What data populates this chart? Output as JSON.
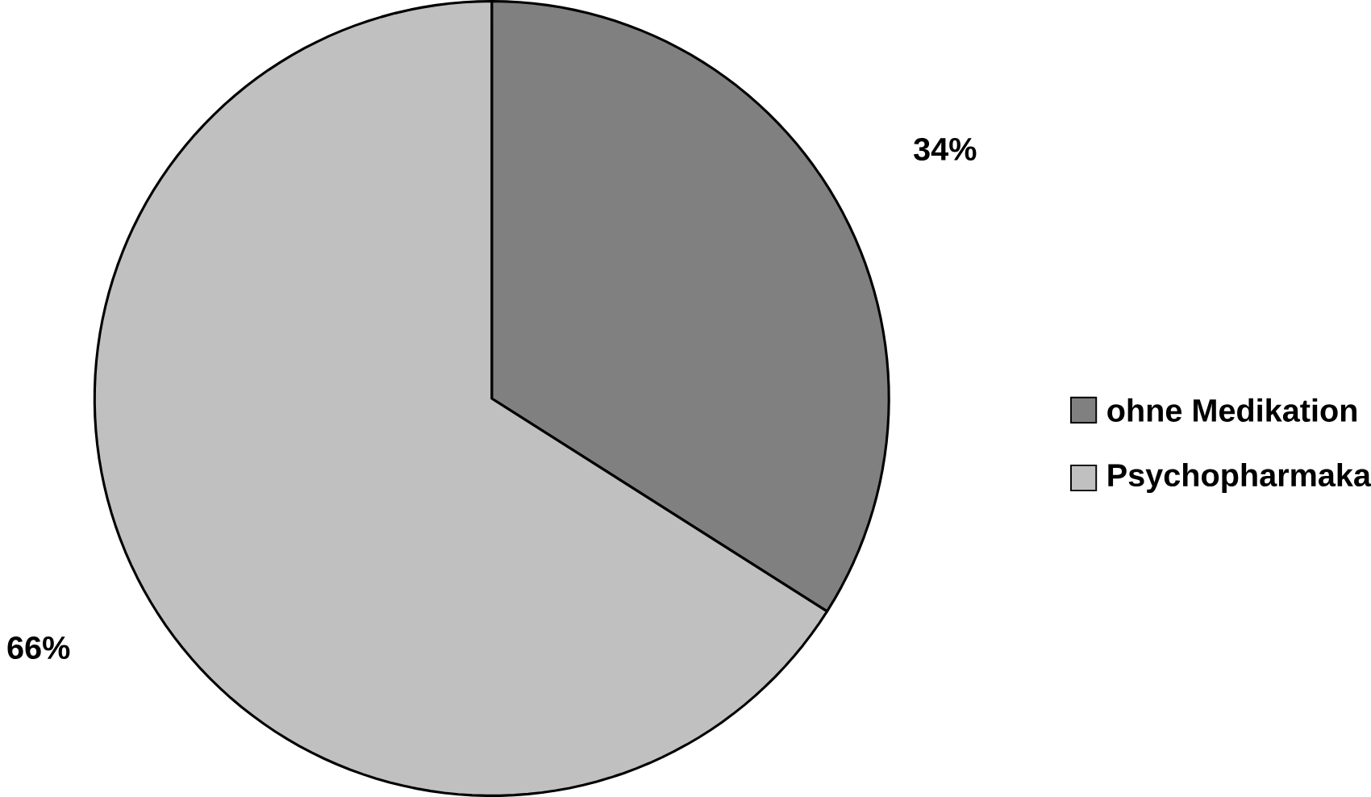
{
  "chart_data": {
    "type": "pie",
    "categories": [
      "ohne Medikation",
      "Psychopharmaka"
    ],
    "values": [
      34,
      66
    ],
    "colors": [
      "#808080",
      "#c0c0c0"
    ],
    "value_labels": [
      "34%",
      "66%"
    ],
    "legend": "right"
  }
}
